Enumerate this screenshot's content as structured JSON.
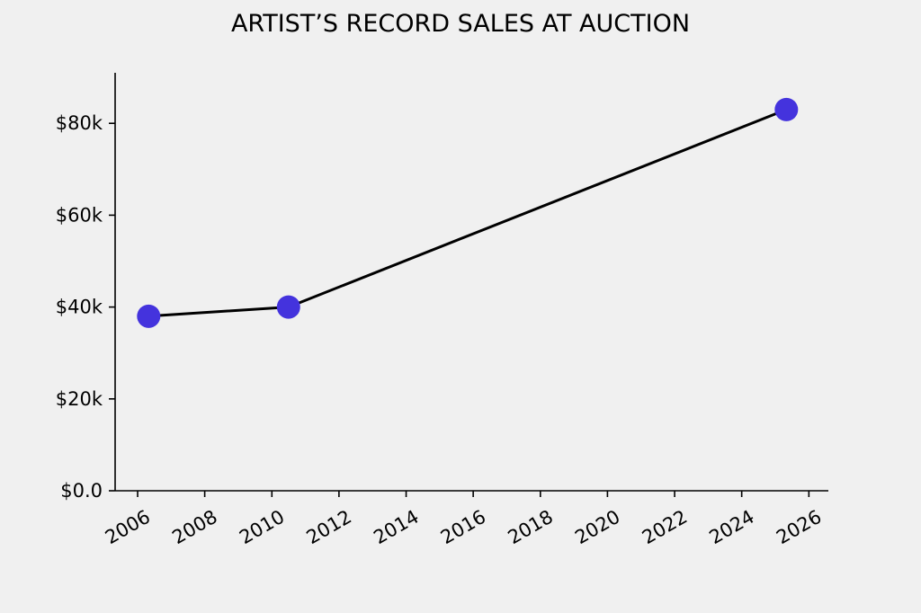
{
  "chart_data": {
    "type": "line",
    "title": "ARTIST’S RECORD SALES AT AUCTION",
    "xlabel": "",
    "ylabel": "",
    "x_axis_type": "date",
    "xlim": [
      "2005-05-01",
      "2026-08-01"
    ],
    "ylim": [
      0,
      91000
    ],
    "x_ticks": [
      {
        "value": "2006-01-01",
        "label": "2006"
      },
      {
        "value": "2008-01-01",
        "label": "2008"
      },
      {
        "value": "2010-01-01",
        "label": "2010"
      },
      {
        "value": "2012-01-01",
        "label": "2012"
      },
      {
        "value": "2014-01-01",
        "label": "2014"
      },
      {
        "value": "2016-01-01",
        "label": "2016"
      },
      {
        "value": "2018-01-01",
        "label": "2018"
      },
      {
        "value": "2020-01-01",
        "label": "2020"
      },
      {
        "value": "2022-01-01",
        "label": "2022"
      },
      {
        "value": "2024-01-01",
        "label": "2024"
      },
      {
        "value": "2026-01-01",
        "label": "2026"
      }
    ],
    "y_ticks": [
      {
        "value": 0,
        "label": "$0.0"
      },
      {
        "value": 20000,
        "label": "$20k"
      },
      {
        "value": 40000,
        "label": "$40k"
      },
      {
        "value": 60000,
        "label": "$60k"
      },
      {
        "value": 80000,
        "label": "$80k"
      }
    ],
    "series": [
      {
        "points": [
          {
            "x": "2006-05-01",
            "y": 38000
          },
          {
            "x": "2010-07-01",
            "y": 40000
          },
          {
            "x": "2025-05-01",
            "y": 83000
          }
        ],
        "line_color": "#000000",
        "marker_color": "#4433dd"
      }
    ],
    "grid": false,
    "legend": "none"
  }
}
